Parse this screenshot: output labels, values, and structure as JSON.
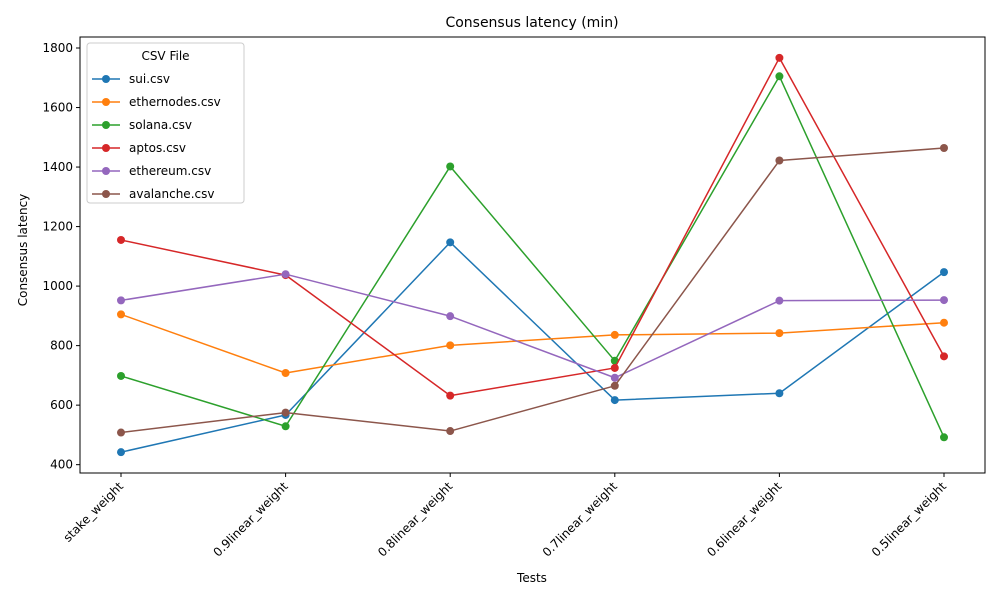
{
  "chart_data": {
    "type": "line",
    "title": "Consensus latency (min)",
    "xlabel": "Tests",
    "ylabel": "Consensus latency",
    "categories": [
      "stake_weight",
      "0.9linear_weight",
      "0.8linear_weight",
      "0.7linear_weight",
      "0.6linear_weight",
      "0.5linear_weight"
    ],
    "ylim": [
      372,
      1837
    ],
    "yticks": [
      400,
      600,
      800,
      1000,
      1200,
      1400,
      1600,
      1800
    ],
    "legend_title": "CSV File",
    "legend_position": "top-left",
    "grid": false,
    "series": [
      {
        "name": "sui.csv",
        "color": "#1f77b4",
        "values": [
          442,
          567,
          1147,
          617,
          640,
          1047
        ]
      },
      {
        "name": "ethernodes.csv",
        "color": "#ff7f0e",
        "values": [
          905,
          708,
          801,
          836,
          842,
          877
        ]
      },
      {
        "name": "solana.csv",
        "color": "#2ca02c",
        "values": [
          698,
          529,
          1402,
          749,
          1705,
          492
        ]
      },
      {
        "name": "aptos.csv",
        "color": "#d62728",
        "values": [
          1155,
          1037,
          632,
          725,
          1767,
          764
        ]
      },
      {
        "name": "ethereum.csv",
        "color": "#9467bd",
        "values": [
          952,
          1040,
          899,
          692,
          951,
          953
        ]
      },
      {
        "name": "avalanche.csv",
        "color": "#8c564b",
        "values": [
          508,
          575,
          513,
          665,
          1422,
          1464
        ]
      }
    ]
  }
}
